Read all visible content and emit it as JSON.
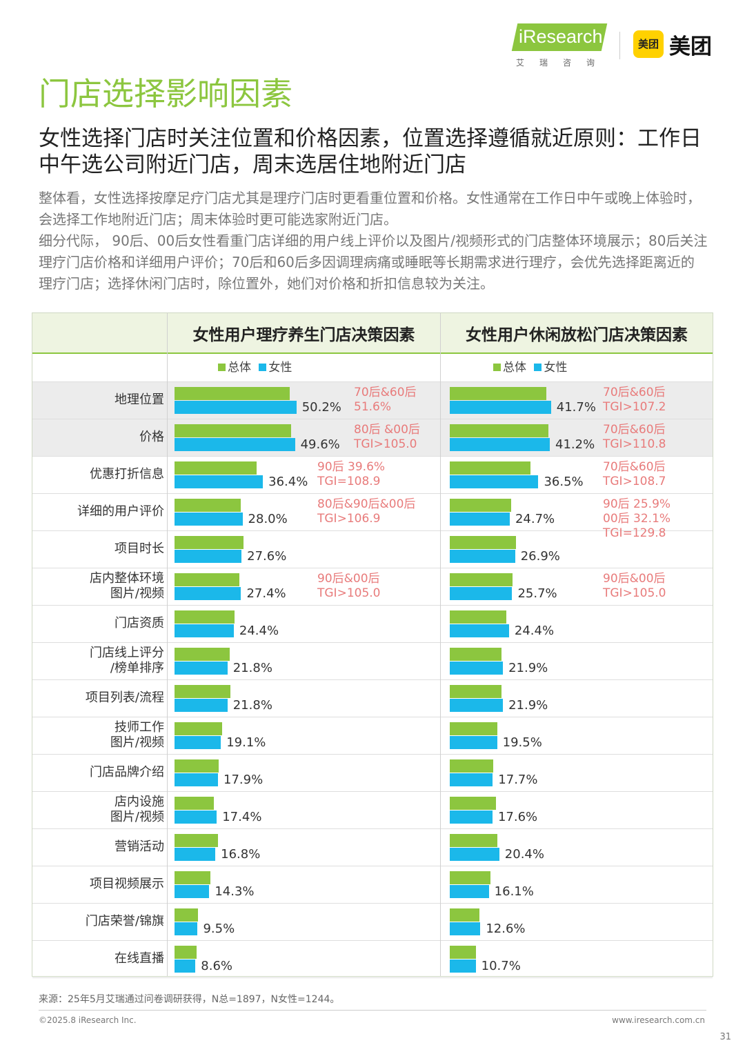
{
  "logos": {
    "iresearch": "iResearch",
    "iresearch_cn": "艾瑞咨询",
    "meituan_badge": "美团",
    "meituan": "美团"
  },
  "title": "门店选择影响因素",
  "subtitle": "女性选择门店时关注位置和价格因素，位置选择遵循就近原则：工作日中午选公司附近门店，周末选居住地附近门店",
  "body": [
    "整体看，女性选择按摩足疗门店尤其是理疗门店时更看重位置和价格。女性通常在工作日中午或晚上体验时，会选择工作地附近门店；周末体验时更可能选家附近门店。",
    "细分代际， 90后、00后女性看重门店详细的用户线上评价以及图片/视频形式的门店整体环境展示；80后关注理疗门店价格和详细用户评价；70后和60后多因调理病痛或睡眠等长期需求进行理疗，会优先选择距离近的理疗门店；选择休闲门店时，除位置外，她们对价格和折扣信息较为关注。"
  ],
  "colors": {
    "total": "#8cc63f",
    "female": "#1bb8ea",
    "note": "#e87b7b",
    "accent": "#8cc63f"
  },
  "chart_data": [
    {
      "type": "bar",
      "title": "女性用户理疗养生门店决策因素",
      "legend": [
        "总体",
        "女性"
      ],
      "categories": [
        "地理位置",
        "价格",
        "优惠打折信息",
        "详细的用户评价",
        "项目时长",
        "店内整体环境\n图片/视频",
        "门店资质",
        "门店线上评分\n/榜单排序",
        "项目列表/流程",
        "技师工作\n图片/视频",
        "门店品牌介绍",
        "店内设施\n图片/视频",
        "营销活动",
        "项目视频展示",
        "门店荣誉/锦旗",
        "在线直播"
      ],
      "series": [
        {
          "name": "总体",
          "values": [
            47.5,
            48.0,
            33.9,
            27.2,
            28.4,
            26.8,
            24.7,
            22.6,
            22.9,
            19.6,
            18.1,
            16.3,
            17.9,
            14.7,
            9.8,
            9.0
          ]
        },
        {
          "name": "女性",
          "values": [
            50.2,
            49.6,
            36.4,
            28.0,
            27.6,
            27.4,
            24.4,
            21.8,
            21.8,
            19.1,
            17.9,
            17.4,
            16.8,
            14.3,
            9.5,
            8.6
          ]
        }
      ],
      "labels": [
        "50.2%",
        "49.6%",
        "36.4%",
        "28.0%",
        "27.6%",
        "27.4%",
        "24.4%",
        "21.8%",
        "21.8%",
        "19.1%",
        "17.9%",
        "17.4%",
        "16.8%",
        "14.3%",
        "9.5%",
        "8.6%"
      ],
      "annotations": [
        {
          "row": 0,
          "text": "70后&60后\n51.6%"
        },
        {
          "row": 1,
          "text": "80后 &00后\nTGI>105.0"
        },
        {
          "row": 2,
          "text": "90后 39.6%\nTGI=108.9"
        },
        {
          "row": 3,
          "text": "80后&90后&00后\nTGI>106.9"
        },
        {
          "row": 5,
          "text": "90后&00后\nTGI>105.0"
        }
      ],
      "highlight_rows": [
        0,
        1
      ]
    },
    {
      "type": "bar",
      "title": "女性用户休闲放松门店决策因素",
      "legend": [
        "总体",
        "女性"
      ],
      "categories": [
        "地理位置",
        "价格",
        "优惠打折信息",
        "详细的用户评价",
        "项目时长",
        "店内整体环境\n图片/视频",
        "门店资质",
        "门店线上评分\n/榜单排序",
        "项目列表/流程",
        "技师工作\n图片/视频",
        "门店品牌介绍",
        "店内设施\n图片/视频",
        "营销活动",
        "项目视频展示",
        "门店荣誉/锦旗",
        "在线直播"
      ],
      "series": [
        {
          "name": "总体",
          "values": [
            39.7,
            40.5,
            33.2,
            25.4,
            27.4,
            25.8,
            23.4,
            21.4,
            21.4,
            19.7,
            17.9,
            19.1,
            19.7,
            16.7,
            12.1,
            10.9
          ]
        },
        {
          "name": "女性",
          "values": [
            41.7,
            41.2,
            36.5,
            24.7,
            26.9,
            25.7,
            24.4,
            21.9,
            21.9,
            19.5,
            17.7,
            17.6,
            20.4,
            16.1,
            12.6,
            10.7
          ]
        }
      ],
      "labels": [
        "41.7%",
        "41.2%",
        "36.5%",
        "24.7%",
        "26.9%",
        "25.7%",
        "24.4%",
        "21.9%",
        "21.9%",
        "19.5%",
        "17.7%",
        "17.6%",
        "20.4%",
        "16.1%",
        "12.6%",
        "10.7%"
      ],
      "annotations": [
        {
          "row": 0,
          "text": "70后&60后\nTGI>107.2"
        },
        {
          "row": 1,
          "text": "70后&60后\nTGI>110.8"
        },
        {
          "row": 2,
          "text": "70后&60后\nTGI>108.7"
        },
        {
          "row": 3,
          "text": "90后 25.9%\n00后 32.1%\nTGI=129.8"
        },
        {
          "row": 5,
          "text": "90后&00后\nTGI>105.0"
        }
      ],
      "highlight_rows": [
        0,
        1
      ]
    }
  ],
  "source": "来源：25年5月艾瑞通过问卷调研获得，N总=1897，N女性=1244。",
  "copyright": "©2025.8 iResearch Inc.",
  "url": "www.iresearch.com.cn",
  "page": "31"
}
